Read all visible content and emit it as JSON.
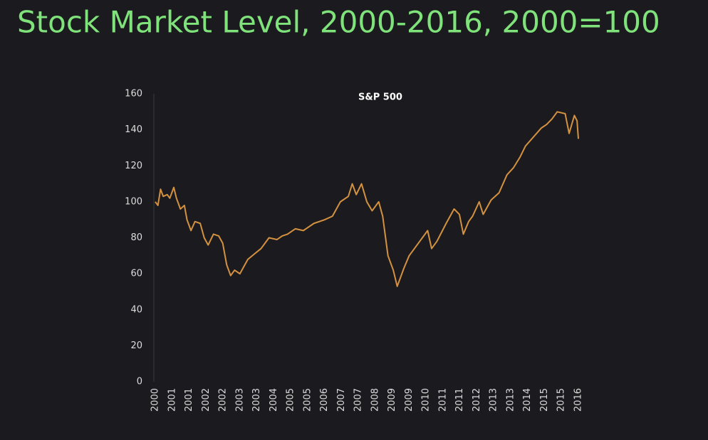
{
  "chart_data": {
    "type": "line",
    "title": "Stock Market Level, 2000-2016, 2000=100",
    "subtitle": "S&P 500",
    "color": "#d4913f",
    "x": [
      2000.0,
      2000.1,
      2000.2,
      2000.3,
      2000.45,
      2000.55,
      2000.7,
      2000.8,
      2000.95,
      2001.1,
      2001.2,
      2001.35,
      2001.5,
      2001.7,
      2001.85,
      2002.0,
      2002.2,
      2002.4,
      2002.55,
      2002.7,
      2002.85,
      2003.0,
      2003.2,
      2003.5,
      2003.75,
      2004.0,
      2004.3,
      2004.6,
      2004.8,
      2005.0,
      2005.3,
      2005.6,
      2005.8,
      2006.0,
      2006.4,
      2006.7,
      2007.0,
      2007.3,
      2007.45,
      2007.6,
      2007.8,
      2008.0,
      2008.2,
      2008.45,
      2008.6,
      2008.8,
      2009.0,
      2009.15,
      2009.4,
      2009.6,
      2010.0,
      2010.3,
      2010.45,
      2010.65,
      2011.0,
      2011.3,
      2011.5,
      2011.65,
      2011.85,
      2012.0,
      2012.25,
      2012.4,
      2012.7,
      2013.0,
      2013.3,
      2013.55,
      2013.8,
      2014.0,
      2014.3,
      2014.6,
      2014.8,
      2015.0,
      2015.2,
      2015.5,
      2015.65,
      2015.85,
      2015.95,
      2016.0
    ],
    "values": [
      100,
      98,
      107,
      103,
      104,
      102,
      108,
      102,
      96,
      98,
      90,
      84,
      89,
      88,
      80,
      76,
      82,
      81,
      77,
      65,
      59,
      62,
      60,
      68,
      71,
      74,
      80,
      79,
      81,
      82,
      85,
      84,
      86,
      88,
      90,
      92,
      100,
      103,
      110,
      104,
      110,
      100,
      95,
      100,
      92,
      70,
      62,
      53,
      63,
      70,
      78,
      84,
      74,
      78,
      88,
      96,
      93,
      82,
      89,
      92,
      100,
      93,
      101,
      105,
      115,
      119,
      125,
      131,
      136,
      141,
      143,
      146,
      150,
      149,
      138,
      148,
      145,
      135
    ],
    "ylim": [
      0,
      160
    ],
    "yticks": [
      0,
      20,
      40,
      60,
      80,
      100,
      120,
      140,
      160
    ],
    "xlim": [
      2000,
      2016
    ],
    "xticks": [
      2000,
      {
        "value": 2000.64,
        "label": "2001"
      },
      {
        "value": 2001.28,
        "label": "2001"
      },
      {
        "value": 2001.92,
        "label": "2002"
      },
      {
        "value": 2002.56,
        "label": "2002"
      },
      {
        "value": 2003.2,
        "label": "2003"
      },
      {
        "value": 2003.84,
        "label": "2003"
      },
      {
        "value": 2004.48,
        "label": "2004"
      },
      {
        "value": 2005.12,
        "label": "2005"
      },
      {
        "value": 2005.76,
        "label": "2005"
      },
      {
        "value": 2006.4,
        "label": "2006"
      },
      {
        "value": 2007.04,
        "label": "2007"
      },
      {
        "value": 2007.68,
        "label": "2007"
      },
      {
        "value": 2008.32,
        "label": "2008"
      },
      {
        "value": 2008.96,
        "label": "2009"
      },
      {
        "value": 2009.6,
        "label": "2009"
      },
      {
        "value": 2010.24,
        "label": "2010"
      },
      {
        "value": 2010.88,
        "label": "2011"
      },
      {
        "value": 2011.52,
        "label": "2011"
      },
      {
        "value": 2012.16,
        "label": "2012"
      },
      {
        "value": 2012.8,
        "label": "2013"
      },
      {
        "value": 2013.44,
        "label": "2013"
      },
      {
        "value": 2014.08,
        "label": "2014"
      },
      {
        "value": 2014.72,
        "label": "2015"
      },
      {
        "value": 2015.36,
        "label": "2015"
      },
      2016
    ]
  }
}
